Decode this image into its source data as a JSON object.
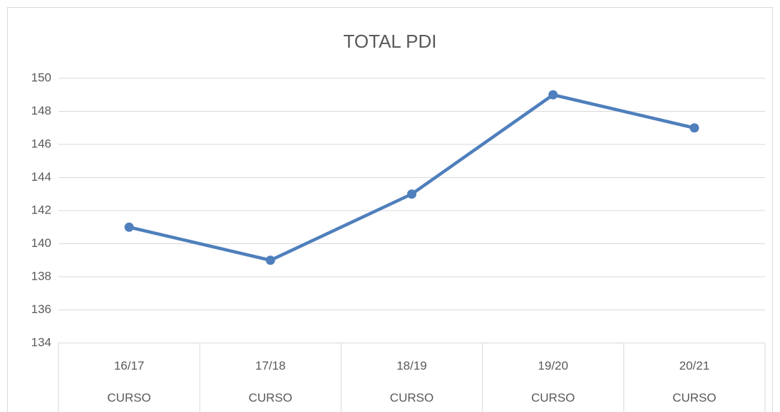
{
  "chart_data": {
    "type": "line",
    "title": "TOTAL PDI",
    "categories": [
      "16/17",
      "17/18",
      "18/19",
      "19/20",
      "20/21"
    ],
    "category_groups": [
      "CURSO",
      "CURSO",
      "CURSO",
      "CURSO",
      "CURSO"
    ],
    "series": [
      {
        "name": "TOTAL PDI",
        "color": "#4f7fbc",
        "values": [
          141,
          139,
          143,
          149,
          147
        ]
      }
    ],
    "ylim": [
      134,
      150
    ],
    "yticks": [
      134,
      136,
      138,
      140,
      142,
      144,
      146,
      148,
      150
    ],
    "grid": true
  }
}
